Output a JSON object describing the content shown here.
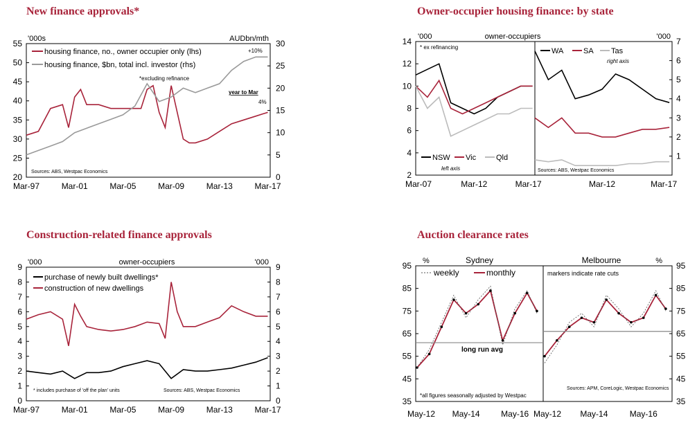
{
  "charts": [
    {
      "title": "New finance approvals*",
      "left_unit": "'000s",
      "right_unit": "AUDbn/mth",
      "x_ticks": [
        "Mar-97",
        "Mar-01",
        "Mar-05",
        "Mar-09",
        "Mar-13",
        "Mar-17"
      ],
      "left_ticks": [
        "55",
        "50",
        "45",
        "40",
        "35",
        "30",
        "25",
        "20"
      ],
      "right_ticks": [
        "30",
        "25",
        "20",
        "15",
        "10",
        "5",
        "0"
      ],
      "legend": [
        "housing finance, no., owner occupier only (lhs)",
        "housing finance, $bn, total incl. investor (rhs)"
      ],
      "annotations": [
        "+10%",
        "*excluding refinance",
        "year to Mar",
        "4%"
      ],
      "source": "Sources: ABS, Westpac Economics"
    },
    {
      "title": "Owner-occupier housing finance: by state",
      "left_unit": "'000",
      "center_label": "owner-occupiers",
      "right_unit": "'000",
      "x_ticks": [
        "Mar-07",
        "Mar-12",
        "Mar-17",
        "Mar-12",
        "Mar-17"
      ],
      "left_ticks": [
        "14",
        "12",
        "10",
        "8",
        "6",
        "4",
        "2"
      ],
      "right_ticks": [
        "7",
        "6",
        "5",
        "4",
        "3",
        "2",
        "1"
      ],
      "legend_left": [
        "NSW",
        "Vic",
        "Qld"
      ],
      "legend_right": [
        "WA",
        "SA",
        "Tas"
      ],
      "annotations": [
        "* ex refinancing",
        "left axis",
        "right axis"
      ],
      "source": "Sources: ABS, Westpac Economics"
    },
    {
      "title": "Construction-related finance approvals",
      "left_unit": "'000",
      "center_label": "owner-occupiers",
      "right_unit": "'000",
      "x_ticks": [
        "Mar-97",
        "Mar-01",
        "Mar-05",
        "Mar-09",
        "Mar-13",
        "Mar-17"
      ],
      "left_ticks": [
        "9",
        "8",
        "7",
        "6",
        "5",
        "4",
        "3",
        "2",
        "1",
        "0"
      ],
      "right_ticks": [
        "9",
        "8",
        "7",
        "6",
        "5",
        "4",
        "3",
        "2",
        "1",
        "0"
      ],
      "legend": [
        "purchase of newly built dwellings*",
        "construction of new dwellings"
      ],
      "annotations": [
        "* includes purchase of 'off the plan' units"
      ],
      "source": "Sources: ABS, Westpac Economics"
    },
    {
      "title": "Auction clearance rates",
      "left_unit": "%",
      "right_unit": "%",
      "panel_labels": [
        "Sydney",
        "Melbourne"
      ],
      "x_ticks": [
        "May-12",
        "May-14",
        "May-16",
        "May-12",
        "May-14",
        "May-16"
      ],
      "left_ticks": [
        "95",
        "85",
        "75",
        "65",
        "55",
        "45",
        "35"
      ],
      "right_ticks": [
        "95",
        "85",
        "75",
        "65",
        "55",
        "45",
        "35"
      ],
      "legend": [
        "weekly",
        "monthly"
      ],
      "annotations": [
        "markers indicate rate cuts",
        "long run avg",
        "*all figures seasonally adjusted by Westpac"
      ],
      "source": "Sources: APM, CoreLogic, Westpac Economics"
    }
  ],
  "chart_data": [
    {
      "type": "line",
      "ylim": [
        20,
        55
      ],
      "y2lim": [
        0,
        30
      ],
      "series": [
        {
          "name": "housing finance, no., owner occupier only (lhs)",
          "axis": "left",
          "color": "#a8233a",
          "x": [
            1997,
            1998,
            1999,
            2000,
            2000.5,
            2001,
            2001.5,
            2002,
            2003,
            2004,
            2005,
            2006,
            2006.5,
            2007,
            2007.5,
            2008,
            2008.5,
            2009,
            2009.5,
            2010,
            2010.5,
            2011,
            2012,
            2013,
            2014,
            2015,
            2016,
            2017
          ],
          "y": [
            31,
            32,
            38,
            39,
            33,
            41,
            43,
            39,
            39,
            38,
            38,
            38,
            38,
            43,
            44,
            37,
            33,
            44,
            37,
            30,
            29,
            29,
            30,
            32,
            34,
            35,
            36,
            37
          ]
        },
        {
          "name": "housing finance, $bn, total incl. investor (rhs)",
          "axis": "right",
          "color": "#9a9a9a",
          "x": [
            1997,
            1998,
            1999,
            2000,
            2001,
            2002,
            2003,
            2004,
            2005,
            2006,
            2007,
            2008,
            2009,
            2010,
            2011,
            2012,
            2013,
            2014,
            2015,
            2016,
            2017
          ],
          "y": [
            5,
            6,
            7,
            8,
            10,
            11,
            12,
            13,
            14,
            16,
            21,
            17,
            18,
            20,
            19,
            20,
            21,
            24,
            26,
            27,
            27
          ]
        }
      ]
    },
    {
      "type": "line",
      "ylim": [
        2,
        14
      ],
      "y2lim": [
        0,
        7
      ],
      "series": [
        {
          "name": "NSW",
          "panel": "left",
          "color": "#000000",
          "x": [
            2007,
            2008,
            2009,
            2010,
            2011,
            2012,
            2013,
            2014,
            2015,
            2016,
            2017
          ],
          "y": [
            11,
            11.5,
            12,
            8.5,
            8,
            7.5,
            8,
            9,
            9.5,
            10,
            10
          ]
        },
        {
          "name": "Vic",
          "panel": "left",
          "color": "#a8233a",
          "x": [
            2007,
            2008,
            2009,
            2010,
            2011,
            2012,
            2013,
            2014,
            2015,
            2016,
            2017
          ],
          "y": [
            10,
            9,
            10.5,
            8,
            7.5,
            8,
            8.5,
            9,
            9.5,
            10,
            10
          ]
        },
        {
          "name": "Qld",
          "panel": "left",
          "color": "#bbbbbb",
          "x": [
            2007,
            2008,
            2009,
            2010,
            2011,
            2012,
            2013,
            2014,
            2015,
            2016,
            2017
          ],
          "y": [
            10,
            8,
            9,
            5.5,
            6,
            6.5,
            7,
            7.5,
            7.5,
            8,
            8
          ]
        },
        {
          "name": "WA",
          "panel": "right",
          "color": "#000000",
          "x": [
            2007,
            2008,
            2009,
            2010,
            2011,
            2012,
            2013,
            2014,
            2015,
            2016,
            2017
          ],
          "y": [
            6.5,
            5,
            5.5,
            4,
            4.2,
            4.5,
            5.3,
            5,
            4.5,
            4,
            3.8
          ]
        },
        {
          "name": "SA",
          "panel": "right",
          "color": "#a8233a",
          "x": [
            2007,
            2008,
            2009,
            2010,
            2011,
            2012,
            2013,
            2014,
            2015,
            2016,
            2017
          ],
          "y": [
            3,
            2.5,
            3,
            2.2,
            2.2,
            2,
            2,
            2.2,
            2.4,
            2.4,
            2.5
          ]
        },
        {
          "name": "Tas",
          "panel": "right",
          "color": "#bbbbbb",
          "x": [
            2007,
            2008,
            2009,
            2010,
            2011,
            2012,
            2013,
            2014,
            2015,
            2016,
            2017
          ],
          "y": [
            0.8,
            0.7,
            0.8,
            0.5,
            0.5,
            0.5,
            0.5,
            0.6,
            0.6,
            0.7,
            0.7
          ]
        }
      ]
    },
    {
      "type": "line",
      "ylim": [
        0,
        9
      ],
      "series": [
        {
          "name": "purchase of newly built dwellings*",
          "color": "#000000",
          "x": [
            1997,
            1998,
            1999,
            2000,
            2001,
            2002,
            2003,
            2004,
            2005,
            2006,
            2007,
            2008,
            2009,
            2010,
            2011,
            2012,
            2013,
            2014,
            2015,
            2016,
            2017
          ],
          "y": [
            2,
            1.9,
            1.8,
            2,
            1.5,
            1.9,
            1.9,
            2,
            2.3,
            2.5,
            2.7,
            2.5,
            1.5,
            2.1,
            2,
            2,
            2.1,
            2.2,
            2.4,
            2.6,
            2.9
          ]
        },
        {
          "name": "construction of new dwellings",
          "color": "#a8233a",
          "x": [
            1997,
            1998,
            1999,
            2000,
            2000.5,
            2001,
            2001.5,
            2002,
            2003,
            2004,
            2005,
            2006,
            2007,
            2008,
            2008.5,
            2009,
            2009.5,
            2010,
            2011,
            2012,
            2013,
            2014,
            2015,
            2016,
            2017
          ],
          "y": [
            5.5,
            5.8,
            6,
            5.5,
            3.7,
            6.5,
            5.7,
            5,
            4.8,
            4.7,
            4.8,
            5,
            5.3,
            5.2,
            4.2,
            8,
            6,
            5,
            5,
            5.3,
            5.6,
            6.4,
            6,
            5.7,
            5.7
          ]
        }
      ]
    },
    {
      "type": "line",
      "ylim": [
        35,
        95
      ],
      "series": [
        {
          "name": "monthly",
          "panel": "Sydney",
          "color": "#a8233a",
          "x": [
            2012.3,
            2012.8,
            2013.3,
            2013.8,
            2014.3,
            2014.8,
            2015.3,
            2015.8,
            2016.3,
            2016.8,
            2017.2
          ],
          "y": [
            50,
            56,
            68,
            80,
            74,
            78,
            84,
            62,
            74,
            83,
            75
          ]
        },
        {
          "name": "weekly",
          "panel": "Sydney",
          "color": "#555555",
          "x": [
            2012.3,
            2012.8,
            2013.3,
            2013.8,
            2014.3,
            2014.8,
            2015.3,
            2015.8,
            2016.3,
            2016.8,
            2017.2
          ],
          "y": [
            50,
            58,
            70,
            82,
            72,
            80,
            86,
            60,
            76,
            84,
            74
          ]
        },
        {
          "name": "monthly",
          "panel": "Melbourne",
          "color": "#a8233a",
          "x": [
            2012.3,
            2012.8,
            2013.3,
            2013.8,
            2014.3,
            2014.8,
            2015.3,
            2015.8,
            2016.3,
            2016.8,
            2017.2
          ],
          "y": [
            55,
            62,
            68,
            72,
            70,
            80,
            74,
            70,
            72,
            82,
            76
          ]
        },
        {
          "name": "weekly",
          "panel": "Melbourne",
          "color": "#555555",
          "x": [
            2012.3,
            2012.8,
            2013.3,
            2013.8,
            2014.3,
            2014.8,
            2015.3,
            2015.8,
            2016.3,
            2016.8,
            2017.2
          ],
          "y": [
            52,
            60,
            70,
            74,
            68,
            82,
            76,
            68,
            74,
            84,
            75
          ]
        },
        {
          "name": "long run avg",
          "panel": "Sydney",
          "color": "#888888",
          "y_const": 61
        },
        {
          "name": "long run avg",
          "panel": "Melbourne",
          "color": "#888888",
          "y_const": 66
        }
      ]
    }
  ]
}
